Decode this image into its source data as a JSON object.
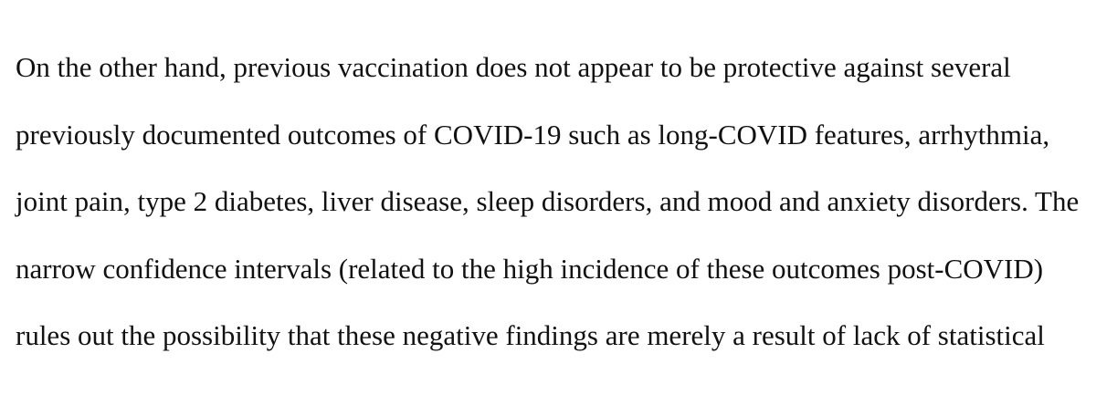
{
  "paragraph": {
    "lines": [
      "On the other hand, previous vaccination does not appear to be protective against several",
      "previously documented outcomes of COVID-19 such as long-COVID features, arrhythmia,",
      "joint pain, type 2 diabetes, liver disease, sleep disorders, and mood and anxiety disorders. The",
      "narrow confidence intervals (related to the high incidence of these outcomes post-COVID)",
      "rules out the possibility that these negative findings are merely a result of lack of statistical"
    ]
  }
}
